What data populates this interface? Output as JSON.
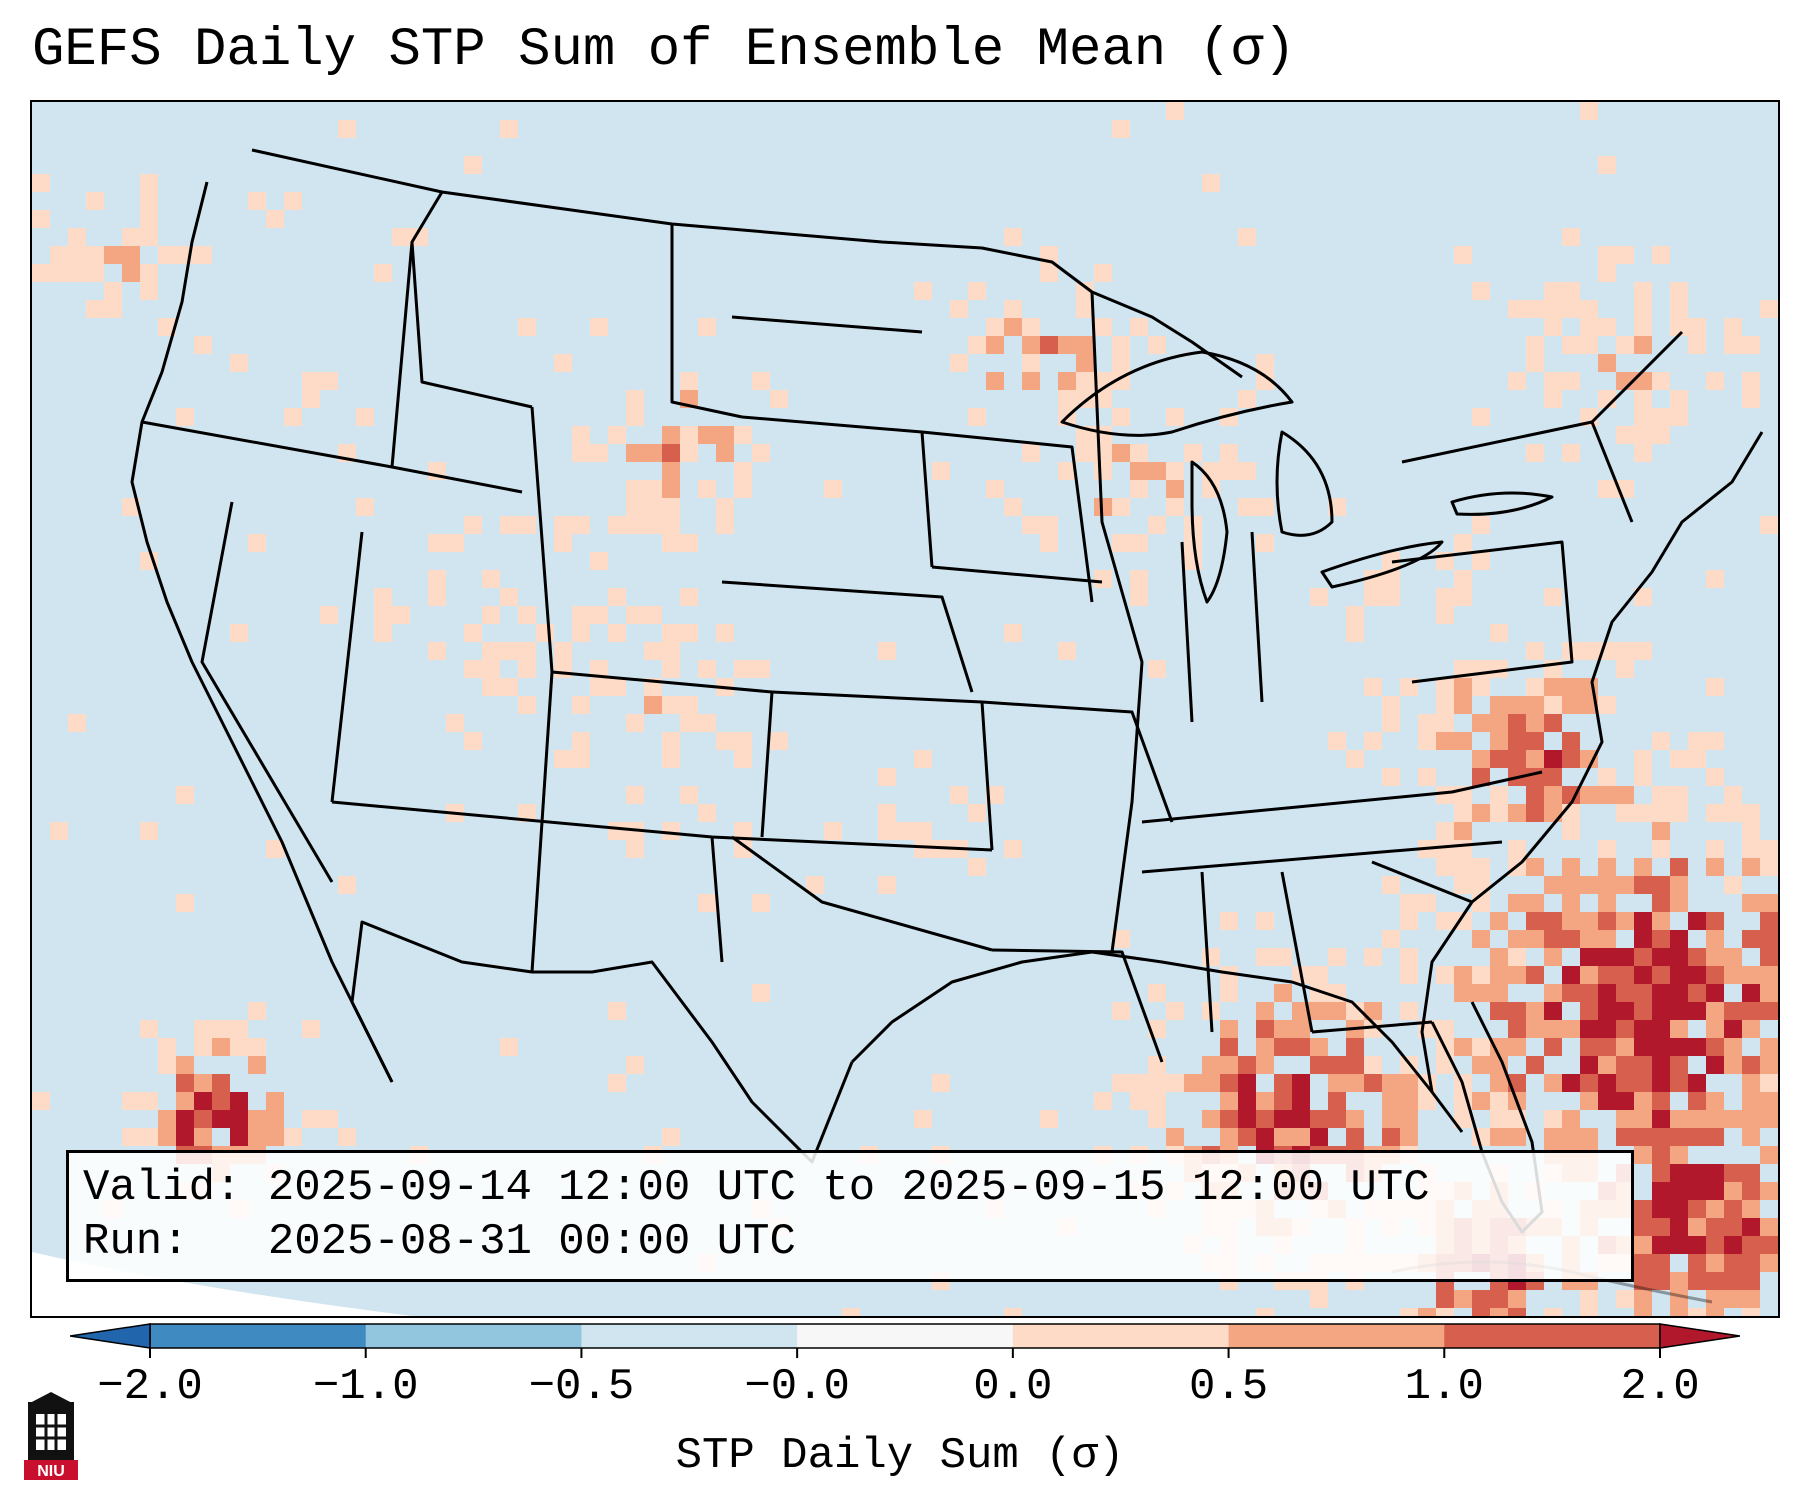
{
  "title": "GEFS Daily STP Sum of Ensemble Mean (σ)",
  "info": {
    "valid_line": "Valid: 2025-09-14 12:00 UTC to 2025-09-15 12:00 UTC",
    "run_line": "Run:   2025-08-31 00:00 UTC"
  },
  "colorbar": {
    "label": "STP Daily Sum (σ)",
    "ticks": [
      "−2.0",
      "−1.0",
      "−0.5",
      "−0.0",
      "0.0",
      "0.5",
      "1.0",
      "2.0"
    ],
    "colors": [
      "#3f8bc1",
      "#92c5de",
      "#d1e5f0",
      "#f7f7f7",
      "#fddbc7",
      "#f4a582",
      "#d6604d",
      "#b2182b"
    ],
    "extend": "both"
  },
  "map": {
    "region": "Contiguous United States",
    "ocean_color": "#ffffff",
    "land_color": "#d1e5f0"
  },
  "logo": {
    "text": "NIU"
  }
}
